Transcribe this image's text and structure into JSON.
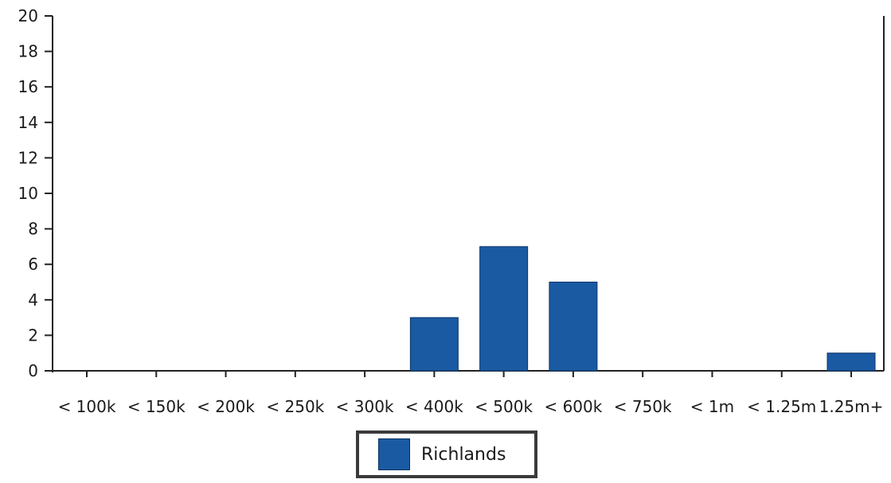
{
  "chart_data": {
    "type": "bar",
    "categories": [
      "< 100k",
      "< 150k",
      "< 200k",
      "< 250k",
      "< 300k",
      "< 400k",
      "< 500k",
      "< 600k",
      "< 750k",
      "< 1m",
      "< 1.25m",
      "1.25m+"
    ],
    "series": [
      {
        "name": "Richlands",
        "values": [
          0,
          0,
          0,
          0,
          0,
          3,
          7,
          5,
          0,
          0,
          0,
          1
        ],
        "color": "#1a5aa3"
      }
    ],
    "ylim": [
      0,
      20
    ],
    "yticks": [
      "0",
      "2",
      "4",
      "6",
      "8",
      "10",
      "12",
      "14",
      "16",
      "18",
      "20"
    ],
    "title": "",
    "xlabel": "",
    "ylabel": "",
    "grid": false,
    "legend_position": "bottom-center"
  }
}
